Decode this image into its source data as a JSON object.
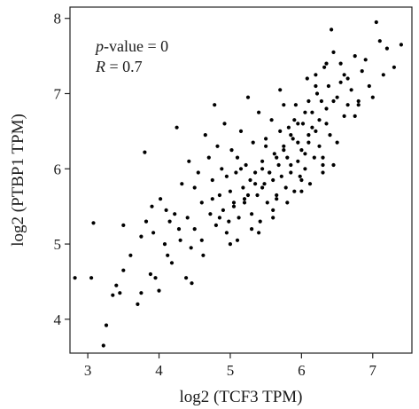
{
  "chart_data": {
    "type": "scatter",
    "title": "",
    "xlabel": "log2 (TCF3 TPM)",
    "ylabel": "log2 (PTBP1 TPM)",
    "xlim": [
      2.75,
      7.55
    ],
    "ylim": [
      3.55,
      8.15
    ],
    "xticks": [
      "3",
      "4",
      "5",
      "6",
      "7"
    ],
    "xtick_values": [
      3,
      4,
      5,
      6,
      7
    ],
    "yticks": [
      "4",
      "5",
      "6",
      "7",
      "8"
    ],
    "ytick_values": [
      4,
      5,
      6,
      7,
      8
    ],
    "grid": false,
    "annotation": {
      "pvalue_label": "p",
      "pvalue_text": "-value = 0",
      "r_label": "R",
      "r_text": " = 0.7"
    },
    "point_color": "#000000",
    "points_x": [
      2.82,
      3.05,
      3.08,
      3.22,
      3.26,
      3.35,
      3.4,
      3.45,
      3.5,
      3.5,
      3.6,
      3.7,
      3.75,
      3.75,
      3.8,
      3.82,
      3.88,
      3.9,
      3.92,
      3.95,
      4.0,
      4.02,
      4.08,
      4.1,
      4.12,
      4.15,
      4.18,
      4.22,
      4.25,
      4.28,
      4.3,
      4.32,
      4.38,
      4.4,
      4.42,
      4.45,
      4.46,
      4.5,
      4.5,
      4.55,
      4.6,
      4.62,
      4.65,
      4.7,
      4.72,
      4.75,
      4.78,
      4.8,
      4.82,
      4.85,
      4.88,
      4.9,
      4.92,
      4.95,
      4.98,
      5.0,
      5.02,
      5.05,
      5.08,
      5.1,
      5.12,
      5.15,
      5.18,
      5.2,
      5.22,
      5.25,
      5.28,
      5.3,
      5.32,
      5.35,
      5.38,
      5.4,
      5.42,
      5.45,
      5.48,
      5.5,
      5.52,
      5.55,
      5.58,
      5.6,
      5.62,
      5.65,
      5.68,
      5.7,
      5.72,
      5.75,
      5.78,
      5.8,
      5.82,
      5.85,
      5.88,
      5.9,
      5.92,
      5.95,
      5.98,
      6.0,
      6.02,
      6.05,
      6.08,
      6.1,
      6.12,
      6.15,
      6.18,
      6.2,
      6.22,
      6.25,
      6.28,
      6.3,
      6.32,
      6.35,
      6.38,
      6.4,
      6.42,
      6.45,
      6.5,
      6.55,
      6.6,
      6.65,
      6.7,
      6.75,
      6.8,
      6.85,
      6.9,
      6.95,
      7.0,
      7.05,
      7.1,
      7.15,
      7.2,
      7.3,
      7.4,
      5.15,
      5.35,
      5.55,
      5.75,
      5.95,
      6.15,
      6.35,
      5.05,
      5.25,
      5.45,
      5.65,
      5.85,
      6.05,
      6.25,
      6.45,
      4.85,
      5.45,
      5.65,
      5.85,
      6.05,
      5.6,
      5.8,
      6.0,
      5.5,
      5.7,
      5.9,
      6.1,
      6.3,
      5.4,
      6.2,
      6.6,
      6.8,
      6.55,
      6.75,
      4.6,
      4.75,
      4.95,
      5.1,
      5.3,
      6.0,
      6.1,
      6.2,
      6.35,
      6.5,
      5.0,
      5.2,
      5.6,
      5.75,
      5.95,
      6.3,
      6.45,
      6.65
    ],
    "points_y": [
      4.55,
      4.55,
      5.28,
      3.65,
      3.92,
      4.32,
      4.45,
      4.35,
      4.65,
      5.25,
      4.85,
      4.2,
      4.35,
      5.1,
      6.22,
      5.3,
      4.6,
      5.5,
      5.15,
      4.55,
      4.38,
      5.6,
      5.0,
      5.45,
      4.85,
      5.3,
      4.75,
      5.4,
      6.55,
      5.2,
      5.05,
      5.8,
      4.55,
      5.35,
      6.1,
      4.95,
      4.48,
      5.75,
      5.2,
      5.95,
      5.55,
      4.85,
      6.45,
      6.15,
      5.4,
      5.85,
      6.85,
      5.25,
      6.3,
      5.65,
      6.0,
      5.45,
      6.6,
      5.9,
      5.3,
      5.7,
      6.25,
      5.5,
      5.95,
      6.15,
      5.35,
      6.5,
      5.75,
      5.55,
      6.05,
      6.95,
      5.85,
      5.4,
      6.35,
      5.95,
      5.65,
      6.75,
      5.3,
      6.1,
      5.8,
      6.4,
      5.55,
      5.95,
      6.65,
      5.85,
      6.2,
      5.65,
      6.05,
      7.05,
      5.9,
      6.3,
      5.75,
      6.15,
      6.55,
      5.95,
      6.4,
      5.7,
      6.85,
      6.1,
      5.9,
      6.25,
      6.6,
      6.0,
      7.2,
      6.35,
      5.8,
      6.75,
      6.15,
      6.5,
      7.0,
      6.3,
      6.9,
      6.05,
      7.35,
      6.6,
      7.1,
      6.45,
      7.85,
      7.55,
      6.95,
      7.4,
      6.7,
      7.2,
      7.05,
      7.5,
      6.85,
      7.3,
      7.45,
      7.1,
      6.95,
      7.95,
      7.7,
      7.25,
      7.6,
      7.35,
      7.65,
      6.0,
      5.8,
      5.95,
      6.25,
      6.35,
      6.55,
      6.8,
      5.55,
      5.65,
      5.75,
      6.15,
      6.45,
      6.75,
      6.65,
      6.9,
      5.35,
      6.0,
      5.6,
      6.05,
      6.2,
      5.45,
      5.55,
      5.85,
      6.3,
      6.5,
      6.65,
      6.45,
      6.15,
      5.15,
      7.1,
      7.25,
      6.9,
      7.15,
      6.7,
      5.05,
      5.6,
      5.15,
      5.05,
      5.2,
      5.7,
      6.9,
      7.25,
      7.4,
      6.35,
      5.0,
      5.6,
      5.35,
      6.85,
      6.6,
      5.95,
      6.05,
      6.85
    ]
  }
}
